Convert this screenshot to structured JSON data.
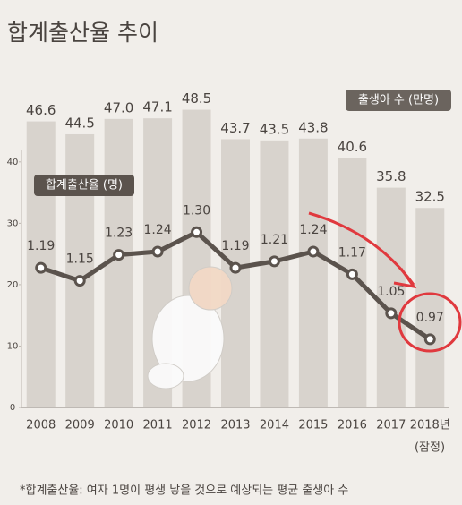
{
  "chart_data": {
    "type": "bar",
    "title": "합계출산율 추이",
    "categories": [
      "2008",
      "2009",
      "2010",
      "2011",
      "2012",
      "2013",
      "2014",
      "2015",
      "2016",
      "2017",
      "2018년"
    ],
    "category_note": "(잠정)",
    "series": [
      {
        "name": "출생아 수 (만명)",
        "type": "bar",
        "color": "#d8d3cd",
        "values": [
          46.6,
          44.5,
          47.0,
          47.1,
          48.5,
          43.7,
          43.5,
          43.8,
          40.6,
          35.8,
          32.5
        ],
        "value_labels": [
          "46.6",
          "44.5",
          "47.0",
          "47.1",
          "48.5",
          "43.7",
          "43.5",
          "43.8",
          "40.6",
          "35.8",
          "32.5"
        ]
      },
      {
        "name": "합계출산율 (명)",
        "type": "line",
        "axis": "y2",
        "color": "#5b534d",
        "values": [
          1.19,
          1.15,
          1.23,
          1.24,
          1.3,
          1.19,
          1.21,
          1.24,
          1.17,
          1.05,
          0.97
        ],
        "value_labels": [
          "1.19",
          "1.15",
          "1.23",
          "1.24",
          "1.30",
          "1.19",
          "1.21",
          "1.24",
          "1.17",
          "1.05",
          "0.97"
        ]
      }
    ],
    "ylim": [
      0,
      55
    ],
    "yticks": [
      0,
      10,
      20,
      30,
      40
    ],
    "y2lim": [
      0.76,
      1.8
    ],
    "highlight": {
      "index": 10,
      "color": "#e0393e"
    },
    "footnote": "*합계출산율: 여자 1명이 평생 낳을 것으로 예상되는 평균 출생아 수"
  }
}
